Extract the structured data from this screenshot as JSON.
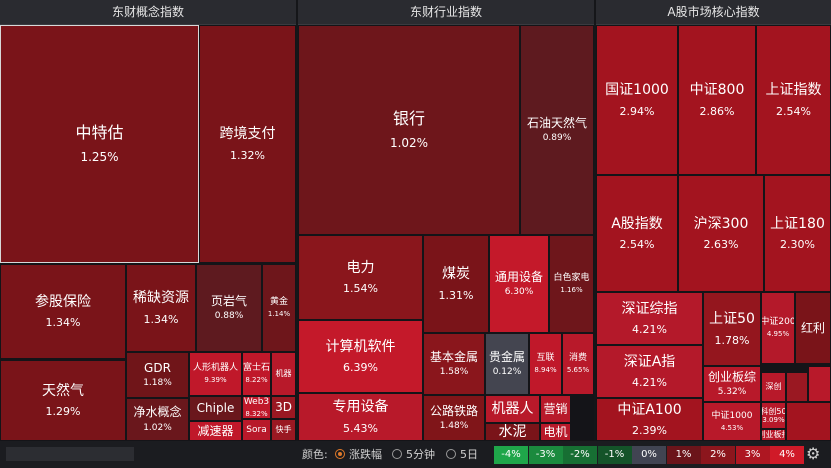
{
  "panels": [
    {
      "title": "东财概念指数"
    },
    {
      "title": "东财行业指数"
    },
    {
      "title": "A股市场核心指数"
    }
  ],
  "concept": [
    {
      "name": "中特估",
      "pct": "1.25%",
      "color": "#7a1419"
    },
    {
      "name": "跨境支付",
      "pct": "1.32%",
      "color": "#7a1419"
    },
    {
      "name": "参股保险",
      "pct": "1.34%",
      "color": "#7a1419"
    },
    {
      "name": "稀缺资源",
      "pct": "1.34%",
      "color": "#7a1419"
    },
    {
      "name": "页岩气",
      "pct": "0.88%",
      "color": "#5e1a1f"
    },
    {
      "name": "黄金",
      "pct": "1.14%",
      "color": "#6e161b"
    },
    {
      "name": "天然气",
      "pct": "1.29%",
      "color": "#7a1419"
    },
    {
      "name": "GDR",
      "pct": "1.18%",
      "color": "#701519"
    },
    {
      "name": "净水概念",
      "pct": "1.02%",
      "color": "#6a171c"
    },
    {
      "name": "人形机器人",
      "pct": "9.39%",
      "color": "#c0182a"
    },
    {
      "name": "富士石",
      "pct": "8.22%",
      "color": "#c0182a"
    },
    {
      "name": "机器",
      "pct": "",
      "color": "#b8192a"
    },
    {
      "name": "Chiple",
      "pct": "",
      "color": "#6a171c"
    },
    {
      "name": "Web3",
      "pct": "8.32%",
      "color": "#c0182a"
    },
    {
      "name": "3D",
      "pct": "",
      "color": "#9a1822"
    },
    {
      "name": "减速器",
      "pct": "",
      "color": "#c0182a"
    },
    {
      "name": "Sora",
      "pct": "",
      "color": "#b8192a"
    },
    {
      "name": "快手",
      "pct": "",
      "color": "#9a1822"
    }
  ],
  "industry": [
    {
      "name": "银行",
      "pct": "1.02%",
      "color": "#6e161b"
    },
    {
      "name": "石油天然气",
      "pct": "0.89%",
      "color": "#5e1a1f"
    },
    {
      "name": "电力",
      "pct": "1.54%",
      "color": "#8a161c"
    },
    {
      "name": "煤炭",
      "pct": "1.31%",
      "color": "#7a1419"
    },
    {
      "name": "通用设备",
      "pct": "6.30%",
      "color": "#c4192a"
    },
    {
      "name": "白色家电",
      "pct": "1.16%",
      "color": "#6e161b"
    },
    {
      "name": "计算机软件",
      "pct": "6.39%",
      "color": "#c4192a"
    },
    {
      "name": "基本金属",
      "pct": "1.58%",
      "color": "#8a161c"
    },
    {
      "name": "贵金属",
      "pct": "0.12%",
      "color": "#444550"
    },
    {
      "name": "互联",
      "pct": "8.94%",
      "color": "#c0182a"
    },
    {
      "name": "消费",
      "pct": "5.65%",
      "color": "#b8192a"
    },
    {
      "name": "专用设备",
      "pct": "5.43%",
      "color": "#b8192a"
    },
    {
      "name": "公路铁路",
      "pct": "1.48%",
      "color": "#801519"
    },
    {
      "name": "机器人",
      "pct": "",
      "color": "#b8192a"
    },
    {
      "name": "营销",
      "pct": "",
      "color": "#b8192a"
    },
    {
      "name": "水泥",
      "pct": "",
      "color": "#7a1419"
    },
    {
      "name": "电机",
      "pct": "",
      "color": "#b8192a"
    }
  ],
  "core": [
    {
      "name": "国证1000",
      "pct": "2.94%",
      "color": "#a3141f"
    },
    {
      "name": "中证800",
      "pct": "2.86%",
      "color": "#a3141f"
    },
    {
      "name": "上证指数",
      "pct": "2.54%",
      "color": "#a3141f"
    },
    {
      "name": "A股指数",
      "pct": "2.54%",
      "color": "#a3141f"
    },
    {
      "name": "沪深300",
      "pct": "2.63%",
      "color": "#a3141f"
    },
    {
      "name": "上证180",
      "pct": "2.30%",
      "color": "#a3141f"
    },
    {
      "name": "深证综指",
      "pct": "4.21%",
      "color": "#b4192a"
    },
    {
      "name": "上证50",
      "pct": "1.78%",
      "color": "#94161e"
    },
    {
      "name": "中证200",
      "pct": "4.95%",
      "color": "#b4192a"
    },
    {
      "name": "红利",
      "pct": "",
      "color": "#7a1419"
    },
    {
      "name": "深证A指",
      "pct": "4.21%",
      "color": "#b4192a"
    },
    {
      "name": "创业板综",
      "pct": "5.32%",
      "color": "#b8192a"
    },
    {
      "name": "深创",
      "pct": "",
      "color": "#b8192a"
    },
    {
      "name": "中证A100",
      "pct": "2.39%",
      "color": "#a3141f"
    },
    {
      "name": "中证1000",
      "pct": "4.53%",
      "color": "#b8192a"
    },
    {
      "name": "科创50",
      "pct": "3.09%",
      "color": "#b8192a"
    },
    {
      "name": "创业板指",
      "pct": "",
      "color": "#b8192a"
    }
  ],
  "footer": {
    "sheet_tab": "",
    "color_label": "颜色:",
    "options": [
      "涨跌幅",
      "5分钟",
      "5日"
    ],
    "legend": [
      {
        "label": "-4%",
        "color": "#1fa64a"
      },
      {
        "label": "-3%",
        "color": "#1b8a3e"
      },
      {
        "label": "-2%",
        "color": "#176f33"
      },
      {
        "label": "-1%",
        "color": "#145329"
      },
      {
        "label": "0%",
        "color": "#414452"
      },
      {
        "label": "1%",
        "color": "#6b141a"
      },
      {
        "label": "2%",
        "color": "#8c161d"
      },
      {
        "label": "3%",
        "color": "#ae1722"
      },
      {
        "label": "4%",
        "color": "#d01a28"
      }
    ],
    "settings_icon": "gear-icon"
  }
}
